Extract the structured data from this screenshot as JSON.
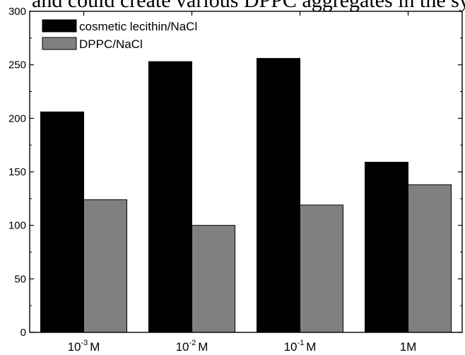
{
  "page": {
    "top_text": "and could create various DPPC aggregates in the sy"
  },
  "chart_data": {
    "type": "bar",
    "title": "",
    "xlabel": "",
    "ylabel": "",
    "categories": [
      {
        "base": "10",
        "exp": "-3",
        "unit": "M"
      },
      {
        "base": "10",
        "exp": "-2",
        "unit": "M"
      },
      {
        "base": "10",
        "exp": "-1",
        "unit": "M"
      },
      {
        "base": "1",
        "exp": "",
        "unit": "M"
      }
    ],
    "series": [
      {
        "name": "cosmetic lecithin/NaCl",
        "color": "#000000",
        "values": [
          206,
          253,
          256,
          159
        ]
      },
      {
        "name": "DPPC/NaCl",
        "color": "#808080",
        "values": [
          124,
          100,
          119,
          138
        ]
      }
    ],
    "ylim": [
      0,
      300
    ],
    "yticks": [
      0,
      50,
      100,
      150,
      200,
      250,
      300
    ],
    "grid": false,
    "legend_position": "top-left"
  }
}
